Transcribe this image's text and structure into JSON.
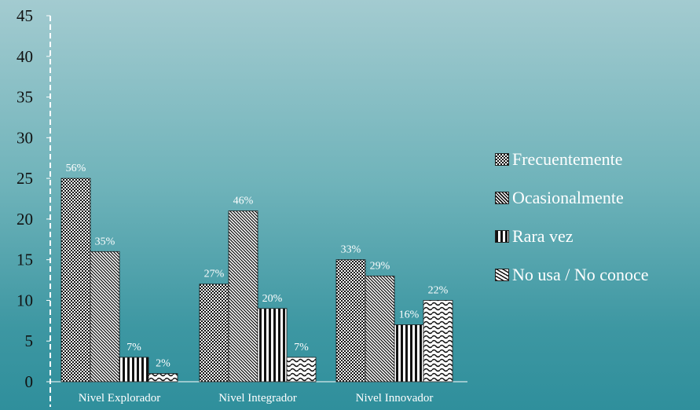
{
  "chart_data": {
    "type": "bar",
    "categories": [
      "Nivel Explorador",
      "Nivel Integrador",
      "Nivel Innovador"
    ],
    "series": [
      {
        "name": "Frecuentemente",
        "values": [
          25,
          12,
          15
        ],
        "labels": [
          "56%",
          "27%",
          "33%"
        ],
        "pattern": "checker"
      },
      {
        "name": "Ocasionalmente",
        "values": [
          16,
          21,
          13
        ],
        "labels": [
          "35%",
          "46%",
          "29%"
        ],
        "pattern": "diagonal"
      },
      {
        "name": "Rara vez",
        "values": [
          3,
          9,
          7
        ],
        "labels": [
          "7%",
          "20%",
          "16%"
        ],
        "pattern": "vertical"
      },
      {
        "name": "No usa / No conoce",
        "values": [
          1,
          3,
          10
        ],
        "labels": [
          "2%",
          "7%",
          "22%"
        ],
        "pattern": "wave"
      }
    ],
    "yticks": [
      0,
      5,
      10,
      15,
      20,
      25,
      30,
      35,
      40,
      45
    ],
    "ylim": [
      0,
      45
    ],
    "grid": false,
    "legend_position": "right"
  }
}
